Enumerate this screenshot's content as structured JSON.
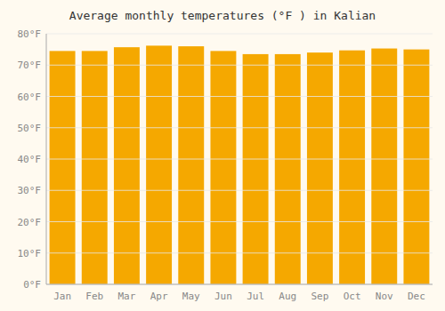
{
  "chart_data": {
    "type": "bar",
    "title": "Average monthly temperatures (°F ) in Kalian",
    "categories": [
      "Jan",
      "Feb",
      "Mar",
      "Apr",
      "May",
      "Jun",
      "Jul",
      "Aug",
      "Sep",
      "Oct",
      "Nov",
      "Dec"
    ],
    "values": [
      74.5,
      74.5,
      75.7,
      76.2,
      76.0,
      74.5,
      73.5,
      73.5,
      74.0,
      74.7,
      75.3,
      75.0
    ],
    "color": "#F5A800",
    "ylim": [
      0,
      80
    ],
    "yticks": [
      {
        "value": 0,
        "label": "0°F"
      },
      {
        "value": 10,
        "label": "10°F"
      },
      {
        "value": 20,
        "label": "20°F"
      },
      {
        "value": 30,
        "label": "30°F"
      },
      {
        "value": 40,
        "label": "40°F"
      },
      {
        "value": 50,
        "label": "50°F"
      },
      {
        "value": 60,
        "label": "60°F"
      },
      {
        "value": 70,
        "label": "70°F"
      },
      {
        "value": 80,
        "label": "80°F"
      }
    ],
    "grid": true
  }
}
